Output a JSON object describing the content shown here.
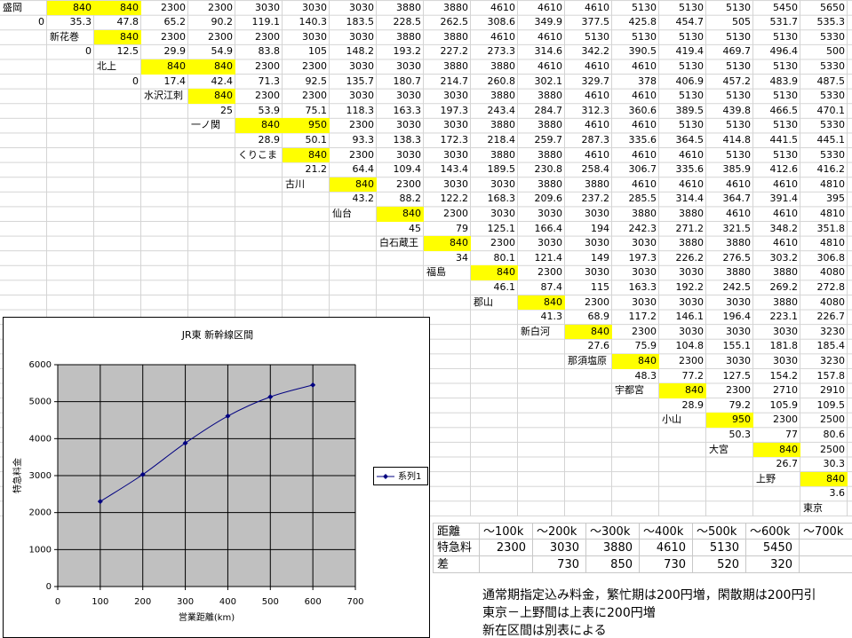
{
  "sheet": {
    "rows": [
      [
        "盛岡",
        {
          "value": 840,
          "fill": "#ffff00"
        },
        {
          "value": 840,
          "fill": "#ffff00"
        },
        2300,
        2300,
        3030,
        3030,
        3030,
        3880,
        3880,
        4610,
        4610,
        4610,
        5130,
        5130,
        5130,
        5450,
        5650
      ],
      [
        0,
        35.3,
        47.8,
        65.2,
        90.2,
        119.1,
        140.3,
        183.5,
        228.5,
        262.5,
        308.6,
        349.9,
        377.5,
        425.8,
        454.7,
        505,
        531.7,
        535.3
      ],
      [
        null,
        "新花巻",
        {
          "value": 840,
          "fill": "#ffff00"
        },
        2300,
        2300,
        2300,
        3030,
        3030,
        3880,
        3880,
        4610,
        4610,
        5130,
        5130,
        5130,
        5130,
        5130,
        5330
      ],
      [
        null,
        0,
        12.5,
        29.9,
        54.9,
        83.8,
        105,
        148.2,
        193.2,
        227.2,
        273.3,
        314.6,
        342.2,
        390.5,
        419.4,
        469.7,
        496.4,
        500
      ],
      [
        null,
        null,
        "北上",
        {
          "value": 840,
          "fill": "#ffff00"
        },
        {
          "value": 840,
          "fill": "#ffff00"
        },
        2300,
        2300,
        3030,
        3030,
        3880,
        3880,
        4610,
        4610,
        4610,
        5130,
        5130,
        5130,
        5330
      ],
      [
        null,
        null,
        0,
        17.4,
        42.4,
        71.3,
        92.5,
        135.7,
        180.7,
        214.7,
        260.8,
        302.1,
        329.7,
        378,
        406.9,
        457.2,
        483.9,
        487.5
      ],
      [
        null,
        null,
        null,
        "水沢江刺",
        {
          "value": 840,
          "fill": "#ffff00"
        },
        2300,
        2300,
        3030,
        3030,
        3030,
        3880,
        3880,
        4610,
        4610,
        5130,
        5130,
        5130,
        5330
      ],
      [
        null,
        null,
        null,
        null,
        25,
        53.9,
        75.1,
        118.3,
        163.3,
        197.3,
        243.4,
        284.7,
        312.3,
        360.6,
        389.5,
        439.8,
        466.5,
        470.1
      ],
      [
        null,
        null,
        null,
        null,
        "一ノ関",
        {
          "value": 840,
          "fill": "#ffff00"
        },
        {
          "value": 950,
          "fill": "#ffff00"
        },
        2300,
        3030,
        3030,
        3880,
        3880,
        4610,
        4610,
        5130,
        5130,
        5130,
        5330
      ],
      [
        null,
        null,
        null,
        null,
        null,
        28.9,
        50.1,
        93.3,
        138.3,
        172.3,
        218.4,
        259.7,
        287.3,
        335.6,
        364.5,
        414.8,
        441.5,
        445.1
      ],
      [
        null,
        null,
        null,
        null,
        null,
        "くりこま",
        {
          "value": 840,
          "fill": "#ffff00"
        },
        2300,
        3030,
        3030,
        3880,
        3880,
        4610,
        4610,
        4610,
        5130,
        5130,
        5330
      ],
      [
        null,
        null,
        null,
        null,
        null,
        null,
        21.2,
        64.4,
        109.4,
        143.4,
        189.5,
        230.8,
        258.4,
        306.7,
        335.6,
        385.9,
        412.6,
        416.2
      ],
      [
        null,
        null,
        null,
        null,
        null,
        null,
        "古川",
        {
          "value": 840,
          "fill": "#ffff00"
        },
        2300,
        3030,
        3030,
        3880,
        3880,
        4610,
        4610,
        4610,
        4610,
        4810
      ],
      [
        null,
        null,
        null,
        null,
        null,
        null,
        null,
        43.2,
        88.2,
        122.2,
        168.3,
        209.6,
        237.2,
        285.5,
        314.4,
        364.7,
        391.4,
        395
      ],
      [
        null,
        null,
        null,
        null,
        null,
        null,
        null,
        "仙台",
        {
          "value": 840,
          "fill": "#ffff00"
        },
        2300,
        3030,
        3030,
        3030,
        3880,
        3880,
        4610,
        4610,
        4810
      ],
      [
        null,
        null,
        null,
        null,
        null,
        null,
        null,
        null,
        45,
        79,
        125.1,
        166.4,
        194,
        242.3,
        271.2,
        321.5,
        348.2,
        351.8
      ],
      [
        null,
        null,
        null,
        null,
        null,
        null,
        null,
        null,
        "白石蔵王",
        {
          "value": 840,
          "fill": "#ffff00"
        },
        2300,
        3030,
        3030,
        3030,
        3880,
        3880,
        4610,
        4810
      ],
      [
        null,
        null,
        null,
        null,
        null,
        null,
        null,
        null,
        null,
        34,
        80.1,
        121.4,
        149,
        197.3,
        226.2,
        276.5,
        303.2,
        306.8
      ],
      [
        null,
        null,
        null,
        null,
        null,
        null,
        null,
        null,
        null,
        "福島",
        {
          "value": 840,
          "fill": "#ffff00"
        },
        2300,
        3030,
        3030,
        3030,
        3880,
        3880,
        4080
      ],
      [
        null,
        null,
        null,
        null,
        null,
        null,
        null,
        null,
        null,
        null,
        46.1,
        87.4,
        115,
        163.3,
        192.2,
        242.5,
        269.2,
        272.8
      ],
      [
        null,
        null,
        null,
        null,
        null,
        null,
        null,
        null,
        null,
        null,
        "郡山",
        {
          "value": 840,
          "fill": "#ffff00"
        },
        2300,
        3030,
        3030,
        3030,
        3880,
        4080
      ],
      [
        null,
        null,
        null,
        null,
        null,
        null,
        null,
        null,
        null,
        null,
        null,
        41.3,
        68.9,
        117.2,
        146.1,
        196.4,
        223.1,
        226.7
      ],
      [
        null,
        null,
        null,
        null,
        null,
        null,
        null,
        null,
        null,
        null,
        null,
        "新白河",
        {
          "value": 840,
          "fill": "#ffff00"
        },
        2300,
        3030,
        3030,
        3030,
        3230
      ],
      [
        null,
        null,
        null,
        null,
        null,
        null,
        null,
        null,
        null,
        null,
        null,
        null,
        27.6,
        75.9,
        104.8,
        155.1,
        181.8,
        185.4
      ],
      [
        null,
        null,
        null,
        null,
        null,
        null,
        null,
        null,
        null,
        null,
        null,
        null,
        "那須塩原",
        {
          "value": 840,
          "fill": "#ffff00"
        },
        2300,
        3030,
        3030,
        3230
      ],
      [
        null,
        null,
        null,
        null,
        null,
        null,
        null,
        null,
        null,
        null,
        null,
        null,
        null,
        48.3,
        77.2,
        127.5,
        154.2,
        157.8
      ],
      [
        null,
        null,
        null,
        null,
        null,
        null,
        null,
        null,
        null,
        null,
        null,
        null,
        null,
        "宇都宮",
        {
          "value": 840,
          "fill": "#ffff00"
        },
        2300,
        2710,
        2910
      ],
      [
        null,
        null,
        null,
        null,
        null,
        null,
        null,
        null,
        null,
        null,
        null,
        null,
        null,
        null,
        28.9,
        79.2,
        105.9,
        109.5
      ],
      [
        null,
        null,
        null,
        null,
        null,
        null,
        null,
        null,
        null,
        null,
        null,
        null,
        null,
        null,
        "小山",
        {
          "value": 950,
          "fill": "#ffff00"
        },
        2300,
        2500
      ],
      [
        null,
        null,
        null,
        null,
        null,
        null,
        null,
        null,
        null,
        null,
        null,
        null,
        null,
        null,
        null,
        50.3,
        77,
        80.6
      ],
      [
        null,
        null,
        null,
        null,
        null,
        null,
        null,
        null,
        null,
        null,
        null,
        null,
        null,
        null,
        null,
        "大宮",
        {
          "value": 840,
          "fill": "#ffff00"
        },
        2500
      ],
      [
        null,
        null,
        null,
        null,
        null,
        null,
        null,
        null,
        null,
        null,
        null,
        null,
        null,
        null,
        null,
        null,
        26.7,
        30.3
      ],
      [
        null,
        null,
        null,
        null,
        null,
        null,
        null,
        null,
        null,
        null,
        null,
        null,
        null,
        null,
        null,
        null,
        "上野",
        {
          "value": 840,
          "fill": "#ffff00"
        }
      ],
      [
        null,
        null,
        null,
        null,
        null,
        null,
        null,
        null,
        null,
        null,
        null,
        null,
        null,
        null,
        null,
        null,
        null,
        3.6
      ],
      [
        null,
        null,
        null,
        null,
        null,
        null,
        null,
        null,
        null,
        null,
        null,
        null,
        null,
        null,
        null,
        null,
        null,
        "東京"
      ]
    ]
  },
  "fare_table": {
    "rows": [
      [
        "距離",
        "〜100k",
        "〜200k",
        "〜300k",
        "〜400k",
        "〜500k",
        "〜600k",
        "〜700k"
      ],
      [
        "特急料",
        2300,
        3030,
        3880,
        4610,
        5130,
        5450,
        null
      ],
      [
        "差",
        null,
        730,
        850,
        730,
        520,
        320,
        null
      ]
    ]
  },
  "notes": [
    "通常期指定込み料金，繁忙期は200円増，閑散期は200円引",
    "東京－上野間は上表に200円増",
    "新在区間は別表による"
  ],
  "chart_data": {
    "type": "line",
    "title": "JR東 新幹線区間",
    "x": [
      100,
      200,
      300,
      400,
      500,
      600
    ],
    "series": [
      {
        "name": "系列1",
        "color": "#000080",
        "values": [
          2300,
          3030,
          3880,
          4610,
          5130,
          5450
        ]
      }
    ],
    "xlim": [
      0,
      700
    ],
    "xticks": [
      0,
      100,
      200,
      300,
      400,
      500,
      600,
      700
    ],
    "ylim": [
      0,
      6000
    ],
    "yticks": [
      0,
      1000,
      2000,
      3000,
      4000,
      5000,
      6000
    ],
    "xlabel": "営業距離(km)",
    "ylabel": "特急料金",
    "grid": true,
    "legend": "right",
    "plot_background": "#c0c0c0",
    "smooth": true
  }
}
